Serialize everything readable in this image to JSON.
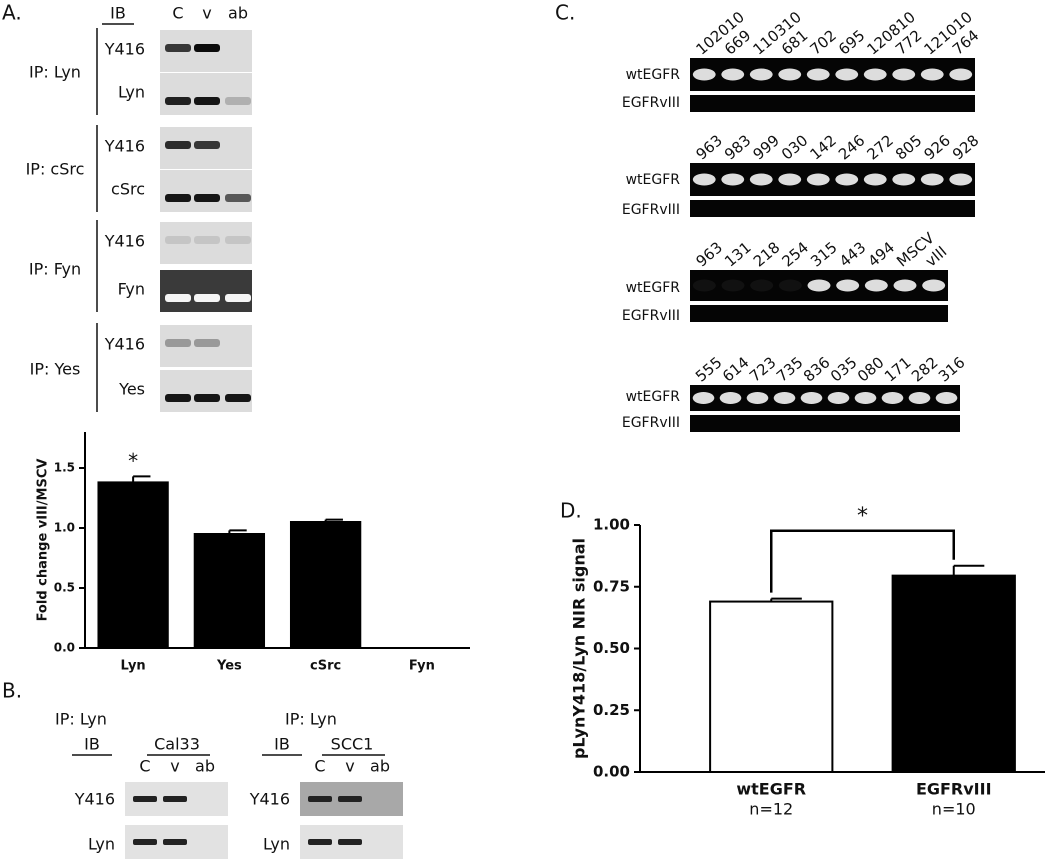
{
  "panels": {
    "A": {
      "label": "A.",
      "ib": "IB",
      "lanes": [
        "C",
        "v",
        "ab"
      ],
      "groups": [
        {
          "ip": "IP: Lyn",
          "rows": [
            "Y416",
            "Lyn"
          ]
        },
        {
          "ip": "IP: cSrc",
          "rows": [
            "Y416",
            "cSrc"
          ]
        },
        {
          "ip": "IP: Fyn",
          "rows": [
            "Y416",
            "Fyn"
          ]
        },
        {
          "ip": "IP: Yes",
          "rows": [
            "Y416",
            "Yes"
          ]
        }
      ]
    },
    "B": {
      "label": "B.",
      "blots": [
        {
          "ip": "IP: Lyn",
          "ib": "IB",
          "cell_line": "Cal33",
          "lanes": [
            "C",
            "v",
            "ab"
          ],
          "rows": [
            "Y416",
            "Lyn"
          ]
        },
        {
          "ip": "IP: Lyn",
          "ib": "IB",
          "cell_line": "SCC1",
          "lanes": [
            "C",
            "v",
            "ab"
          ],
          "rows": [
            "Y416",
            "Lyn"
          ]
        }
      ]
    },
    "C": {
      "label": "C.",
      "gels": [
        {
          "samples": [
            "102010",
            "669",
            "110310",
            "681",
            "702",
            "695",
            "120810",
            "772",
            "121010",
            "764"
          ],
          "rows": [
            "wtEGFR",
            "EGFRvIII"
          ]
        },
        {
          "samples": [
            "963",
            "983",
            "999",
            "030",
            "142",
            "246",
            "272",
            "805",
            "926",
            "928"
          ],
          "rows": [
            "wtEGFR",
            "EGFRvIII"
          ]
        },
        {
          "samples": [
            "963",
            "131",
            "218",
            "254",
            "315",
            "443",
            "494",
            "MSCV",
            "vIII"
          ],
          "rows": [
            "wtEGFR",
            "EGFRvIII"
          ]
        },
        {
          "samples": [
            "555",
            "614",
            "723",
            "735",
            "836",
            "035",
            "080",
            "171",
            "282",
            "316"
          ],
          "rows": [
            "wtEGFR",
            "EGFRvIII"
          ]
        }
      ]
    },
    "D": {
      "label": "D."
    }
  },
  "chart_data": [
    {
      "type": "bar",
      "ylabel": "Fold change vIII/MSCV",
      "categories": [
        "Lyn",
        "Yes",
        "cSrc",
        "Fyn"
      ],
      "values": [
        1.38,
        0.95,
        1.05,
        0
      ],
      "errors": [
        0.05,
        0.03,
        0.02,
        0
      ],
      "colors": [
        "#000000",
        "#000000",
        "#000000",
        "#000000"
      ],
      "ylim": [
        0,
        1.8
      ],
      "yticks": [
        {
          "value": 0,
          "label": "0.0"
        },
        {
          "value": 0.5,
          "label": "0.5"
        },
        {
          "value": 1,
          "label": "1.0"
        },
        {
          "value": 1.5,
          "label": "1.5"
        }
      ],
      "annotations": [
        {
          "text": "*",
          "categories": [
            "Lyn"
          ]
        }
      ]
    },
    {
      "type": "bar",
      "ylabel": "pLynY418/Lyn NIR signal",
      "categories": [
        "wtEGFR",
        "EGFRvIII"
      ],
      "sublabels": [
        "n=12",
        "n=10"
      ],
      "values": [
        0.69,
        0.795
      ],
      "errors": [
        0.012,
        0.04
      ],
      "colors": [
        "#ffffff",
        "#000000"
      ],
      "ylim": [
        0,
        1
      ],
      "yticks": [
        {
          "value": 0,
          "label": "0.00"
        },
        {
          "value": 0.25,
          "label": "0.25"
        },
        {
          "value": 0.5,
          "label": "0.50"
        },
        {
          "value": 0.75,
          "label": "0.75"
        },
        {
          "value": 1,
          "label": "1.00"
        }
      ],
      "annotations": [
        {
          "text": "*",
          "categories": [
            "wtEGFR",
            "EGFRvIII"
          ]
        }
      ]
    }
  ]
}
